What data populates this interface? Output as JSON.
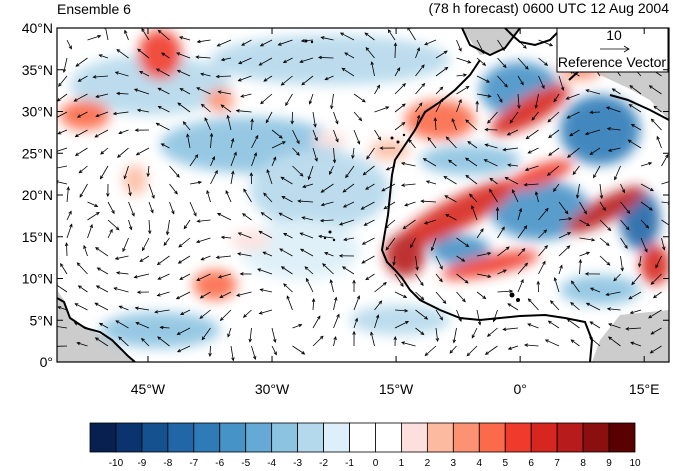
{
  "title_left": "Ensemble 6",
  "title_right": "(78 h forecast) 0600 UTC 12 Aug 2004",
  "map": {
    "lon_range": [
      -56,
      18
    ],
    "lat_range": [
      0,
      40
    ],
    "lat_ticks": [
      {
        "value": 40,
        "label": "40°N"
      },
      {
        "value": 35,
        "label": "35°N"
      },
      {
        "value": 30,
        "label": "30°N"
      },
      {
        "value": 25,
        "label": "25°N"
      },
      {
        "value": 20,
        "label": "20°N"
      },
      {
        "value": 15,
        "label": "15°N"
      },
      {
        "value": 10,
        "label": "10°N"
      },
      {
        "value": 5,
        "label": "5°N"
      },
      {
        "value": 0,
        "label": "0°"
      }
    ],
    "lon_ticks": [
      {
        "value": -45,
        "label": "45°W"
      },
      {
        "value": -30,
        "label": "30°W"
      },
      {
        "value": -15,
        "label": "15°W"
      },
      {
        "value": 0,
        "label": "0°"
      },
      {
        "value": 15,
        "label": "15°E"
      }
    ],
    "land_color": "#cccccc",
    "coast_color": "#000000"
  },
  "reference_vector": {
    "value": "10",
    "label": "Reference Vector"
  },
  "colorbar": {
    "labels": [
      "-10",
      "-9",
      "-8",
      "-7",
      "-6",
      "-5",
      "-4",
      "-3",
      "-2",
      "-1",
      "0",
      "1",
      "2",
      "3",
      "4",
      "5",
      "6",
      "7",
      "8",
      "9",
      "10"
    ],
    "colors": [
      "#08204f",
      "#0b336f",
      "#15508f",
      "#2166a7",
      "#2f7bb8",
      "#4693c7",
      "#64aad4",
      "#8cc3e1",
      "#b5d9ec",
      "#ddeff8",
      "#ffffff",
      "#ffffff",
      "#fde0dd",
      "#fcbba1",
      "#fc9272",
      "#fb6a4a",
      "#ef3b2c",
      "#d7261f",
      "#b71b1b",
      "#8b0f0f",
      "#5a0000"
    ]
  }
}
